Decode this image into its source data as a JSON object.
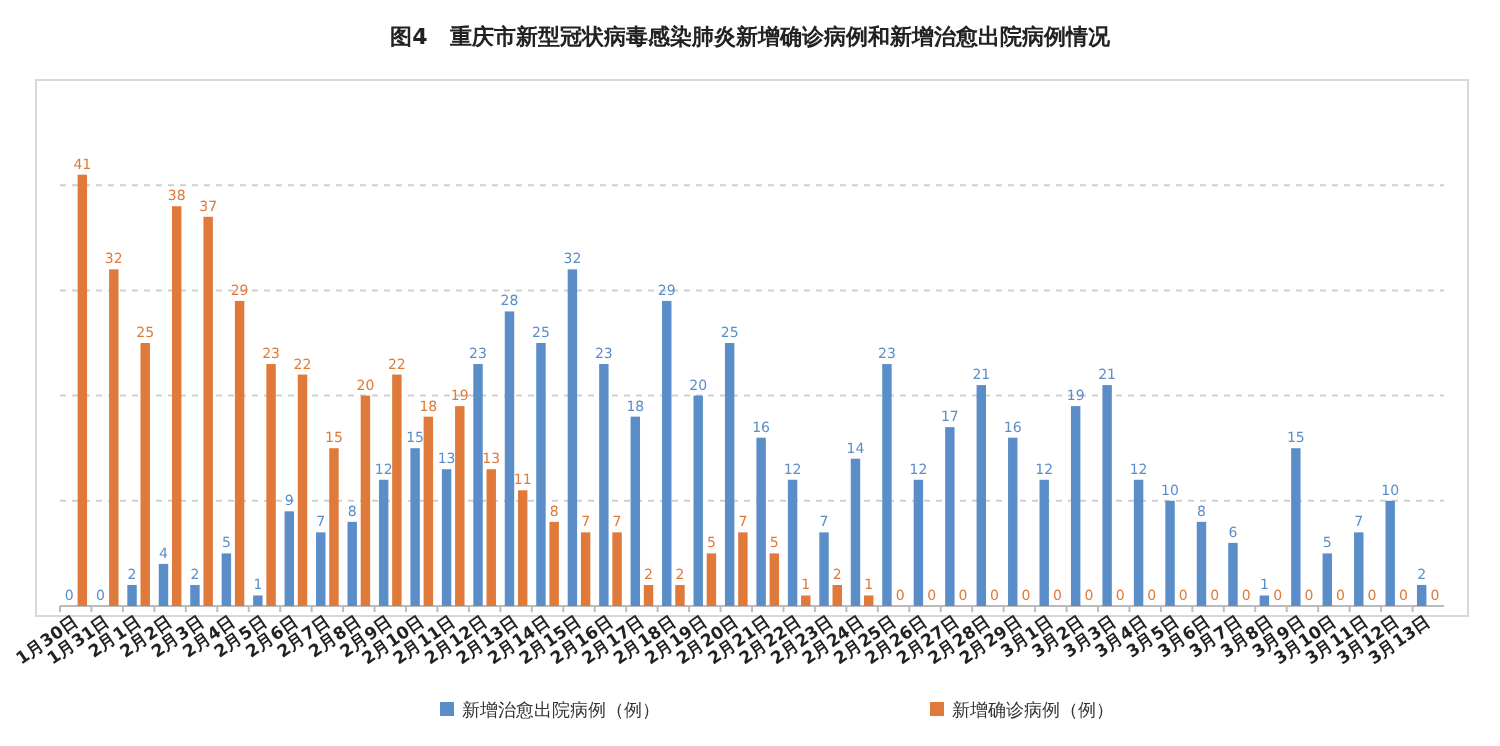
{
  "chart_data": {
    "type": "bar",
    "title": "图4　重庆市新型冠状病毒感染肺炎新增确诊病例和新增治愈出院病例情况",
    "categories": [
      "1月30日",
      "1月31日",
      "2月1日",
      "2月2日",
      "2月3日",
      "2月4日",
      "2月5日",
      "2月6日",
      "2月7日",
      "2月8日",
      "2月9日",
      "2月10日",
      "2月11日",
      "2月12日",
      "2月13日",
      "2月14日",
      "2月15日",
      "2月16日",
      "2月17日",
      "2月18日",
      "2月19日",
      "2月20日",
      "2月21日",
      "2月22日",
      "2月23日",
      "2月24日",
      "2月25日",
      "2月26日",
      "2月27日",
      "2月28日",
      "2月29日",
      "3月1日",
      "3月2日",
      "3月3日",
      "3月4日",
      "3月5日",
      "3月6日",
      "3月7日",
      "3月8日",
      "3月9日",
      "3月10日",
      "3月11日",
      "3月12日",
      "3月13日"
    ],
    "series": [
      {
        "name": "新增治愈出院病例（例）",
        "color": "#5b8ec8",
        "values": [
          0,
          0,
          2,
          4,
          2,
          5,
          1,
          9,
          7,
          8,
          12,
          15,
          13,
          23,
          28,
          25,
          32,
          23,
          18,
          29,
          20,
          25,
          16,
          12,
          7,
          14,
          23,
          12,
          17,
          21,
          16,
          12,
          19,
          21,
          12,
          10,
          8,
          6,
          1,
          15,
          5,
          7,
          10,
          2
        ]
      },
      {
        "name": "新增确诊病例（例）",
        "color": "#e07a3a",
        "values": [
          41,
          32,
          25,
          38,
          37,
          29,
          23,
          22,
          15,
          20,
          22,
          18,
          19,
          13,
          11,
          8,
          7,
          7,
          2,
          2,
          5,
          7,
          5,
          1,
          2,
          1,
          0,
          0,
          0,
          0,
          0,
          0,
          0,
          0,
          0,
          0,
          0,
          0,
          0,
          0,
          0,
          0,
          0,
          0
        ]
      }
    ],
    "ylim": [
      0,
      50
    ],
    "yticks": [
      {
        "value": 10,
        "label": null
      },
      {
        "value": 20,
        "label": null
      },
      {
        "value": 30,
        "label": null
      },
      {
        "value": 40,
        "label": null
      }
    ],
    "grid": "y",
    "data_labels": true,
    "legend": "bottom",
    "tick_labels": "x"
  }
}
